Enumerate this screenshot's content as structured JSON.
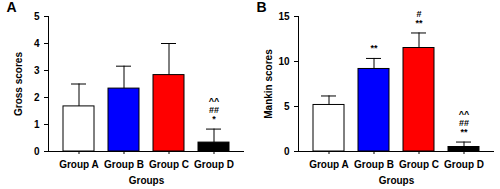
{
  "chart_data": [
    {
      "type": "bar",
      "title": "A",
      "x_label": "Groups",
      "y_label": "Gross scores",
      "categories": [
        "Group A",
        "Group B",
        "Group C",
        "Group D"
      ],
      "values": [
        1.67,
        2.33,
        2.83,
        0.33
      ],
      "errors": [
        0.83,
        0.83,
        1.17,
        0.5
      ],
      "colors": [
        "#ffffff",
        "#0000ff",
        "#ff0000",
        "#000000"
      ],
      "annotations": [
        [],
        [],
        [],
        [
          "^^",
          "##",
          "*"
        ]
      ],
      "ylim": [
        0,
        5
      ],
      "yticks": [
        0,
        1,
        2,
        3,
        4,
        5
      ]
    },
    {
      "type": "bar",
      "title": "B",
      "x_label": "Groups",
      "y_label": "Mankin scores",
      "categories": [
        "Group A",
        "Group B",
        "Group C",
        "Group D"
      ],
      "values": [
        5.17,
        9.17,
        11.5,
        0.5
      ],
      "errors": [
        1.0,
        1.17,
        1.67,
        0.55
      ],
      "colors": [
        "#ffffff",
        "#0000ff",
        "#ff0000",
        "#000000"
      ],
      "annotations": [
        [],
        [
          "**"
        ],
        [
          "#",
          "**"
        ],
        [
          "^^",
          "##",
          "**"
        ]
      ],
      "ylim": [
        0,
        15
      ],
      "yticks": [
        0,
        5,
        10,
        15
      ]
    }
  ]
}
